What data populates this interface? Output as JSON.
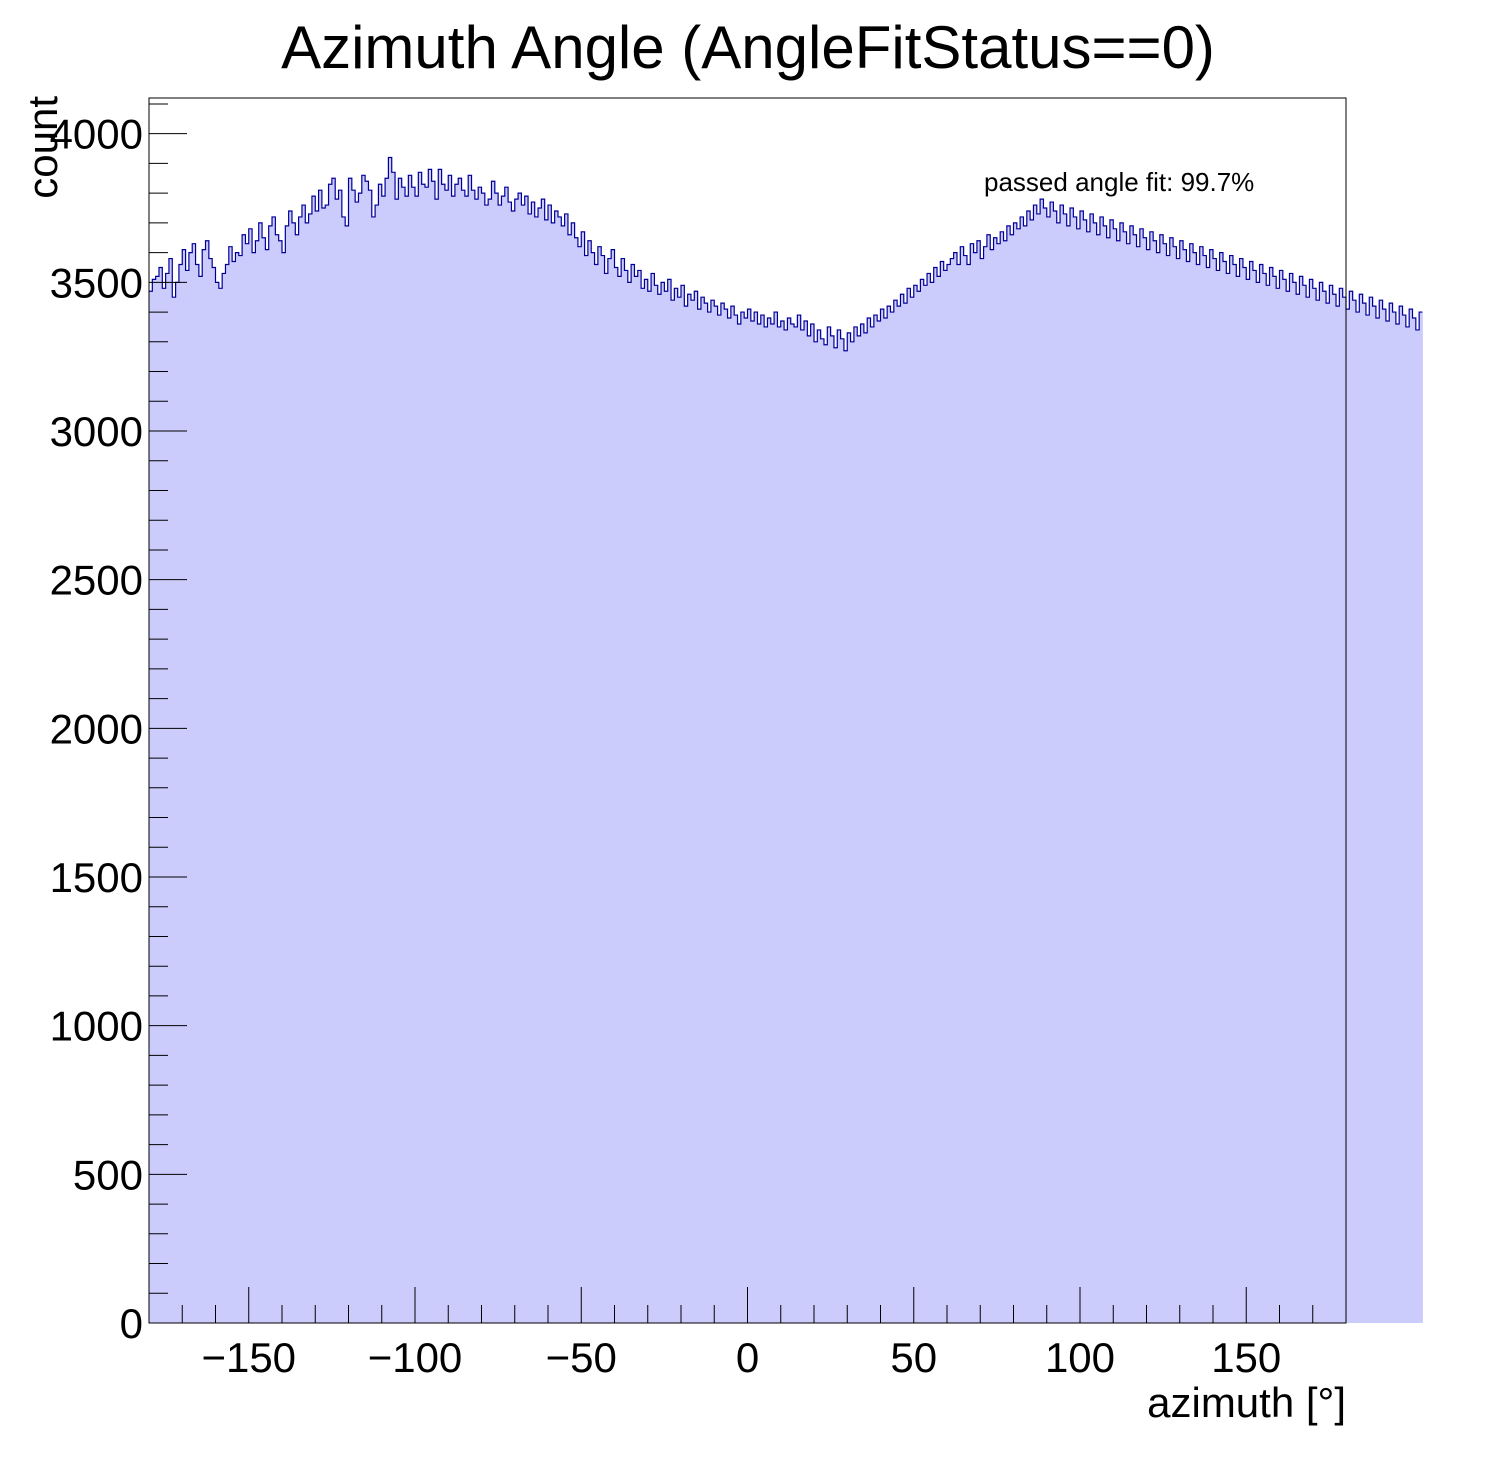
{
  "chart_data": {
    "type": "bar",
    "title": "Azimuth Angle (AngleFitStatus==0)",
    "xlabel": "azimuth [°]",
    "ylabel": "count",
    "annotation": "passed angle fit: 99.7%",
    "xlim": [
      -180,
      180
    ],
    "ylim": [
      0,
      4120
    ],
    "x_ticks": [
      -150,
      -100,
      -50,
      0,
      50,
      100,
      150
    ],
    "x_tick_labels": [
      "−150",
      "−100",
      "−50",
      "0",
      "50",
      "100",
      "150"
    ],
    "y_ticks": [
      0,
      500,
      1000,
      1500,
      2000,
      2500,
      3000,
      3500,
      4000
    ],
    "y_tick_labels": [
      "0",
      "500",
      "1000",
      "1500",
      "2000",
      "2500",
      "3000",
      "3500",
      "4000"
    ],
    "grid": false,
    "bin_width": 1,
    "bin_start": -180,
    "fill_color": "#ccccfc",
    "line_color": "#000099",
    "values": [
      3470,
      3510,
      3520,
      3550,
      3480,
      3530,
      3580,
      3450,
      3500,
      3560,
      3610,
      3540,
      3600,
      3630,
      3560,
      3520,
      3610,
      3640,
      3580,
      3550,
      3500,
      3480,
      3530,
      3560,
      3620,
      3570,
      3600,
      3590,
      3660,
      3630,
      3680,
      3600,
      3640,
      3700,
      3650,
      3610,
      3690,
      3720,
      3660,
      3640,
      3600,
      3690,
      3740,
      3700,
      3660,
      3720,
      3760,
      3700,
      3730,
      3790,
      3740,
      3810,
      3750,
      3760,
      3830,
      3850,
      3780,
      3810,
      3720,
      3690,
      3850,
      3810,
      3770,
      3800,
      3860,
      3840,
      3810,
      3720,
      3760,
      3830,
      3790,
      3850,
      3920,
      3870,
      3780,
      3850,
      3820,
      3790,
      3860,
      3820,
      3790,
      3870,
      3830,
      3820,
      3880,
      3840,
      3780,
      3880,
      3830,
      3810,
      3860,
      3790,
      3830,
      3850,
      3810,
      3790,
      3860,
      3810,
      3780,
      3820,
      3800,
      3760,
      3780,
      3840,
      3800,
      3760,
      3790,
      3820,
      3770,
      3740,
      3780,
      3800,
      3760,
      3790,
      3730,
      3770,
      3720,
      3750,
      3780,
      3710,
      3760,
      3700,
      3740,
      3720,
      3690,
      3730,
      3660,
      3700,
      3650,
      3620,
      3670,
      3590,
      3640,
      3600,
      3560,
      3620,
      3590,
      3530,
      3580,
      3610,
      3550,
      3520,
      3580,
      3540,
      3500,
      3560,
      3520,
      3540,
      3480,
      3510,
      3470,
      3530,
      3490,
      3460,
      3500,
      3470,
      3510,
      3440,
      3480,
      3450,
      3490,
      3420,
      3460,
      3440,
      3470,
      3410,
      3450,
      3430,
      3400,
      3440,
      3420,
      3390,
      3430,
      3410,
      3380,
      3420,
      3390,
      3360,
      3400,
      3380,
      3410,
      3370,
      3400,
      3360,
      3390,
      3350,
      3380,
      3360,
      3400,
      3350,
      3370,
      3340,
      3380,
      3360,
      3350,
      3390,
      3340,
      3370,
      3320,
      3360,
      3300,
      3340,
      3310,
      3290,
      3350,
      3320,
      3280,
      3340,
      3310,
      3270,
      3330,
      3300,
      3350,
      3320,
      3360,
      3330,
      3380,
      3350,
      3390,
      3370,
      3410,
      3380,
      3420,
      3400,
      3440,
      3420,
      3460,
      3430,
      3480,
      3450,
      3490,
      3470,
      3510,
      3490,
      3530,
      3500,
      3550,
      3520,
      3570,
      3540,
      3560,
      3580,
      3600,
      3560,
      3620,
      3590,
      3560,
      3630,
      3600,
      3640,
      3580,
      3620,
      3660,
      3610,
      3650,
      3630,
      3670,
      3640,
      3690,
      3660,
      3700,
      3680,
      3720,
      3690,
      3740,
      3710,
      3760,
      3730,
      3780,
      3750,
      3720,
      3770,
      3740,
      3700,
      3760,
      3730,
      3690,
      3750,
      3720,
      3680,
      3740,
      3710,
      3670,
      3730,
      3700,
      3660,
      3720,
      3690,
      3650,
      3710,
      3680,
      3640,
      3700,
      3670,
      3630,
      3690,
      3660,
      3620,
      3680,
      3650,
      3610,
      3670,
      3640,
      3600,
      3660,
      3630,
      3590,
      3650,
      3620,
      3580,
      3640,
      3610,
      3570,
      3630,
      3600,
      3560,
      3620,
      3590,
      3550,
      3610,
      3580,
      3540,
      3600,
      3570,
      3530,
      3590,
      3560,
      3520,
      3580,
      3550,
      3510,
      3570,
      3540,
      3500,
      3560,
      3530,
      3490,
      3550,
      3520,
      3480,
      3540,
      3510,
      3470,
      3530,
      3500,
      3460,
      3520,
      3490,
      3450,
      3510,
      3480,
      3440,
      3500,
      3470,
      3430,
      3490,
      3460,
      3420,
      3480,
      3450,
      3410,
      3470,
      3440,
      3400,
      3460,
      3430,
      3390,
      3450,
      3420,
      3380,
      3440,
      3410,
      3370,
      3430,
      3400,
      3360,
      3420,
      3390,
      3350,
      3410,
      3380,
      3340,
      3400
    ]
  }
}
